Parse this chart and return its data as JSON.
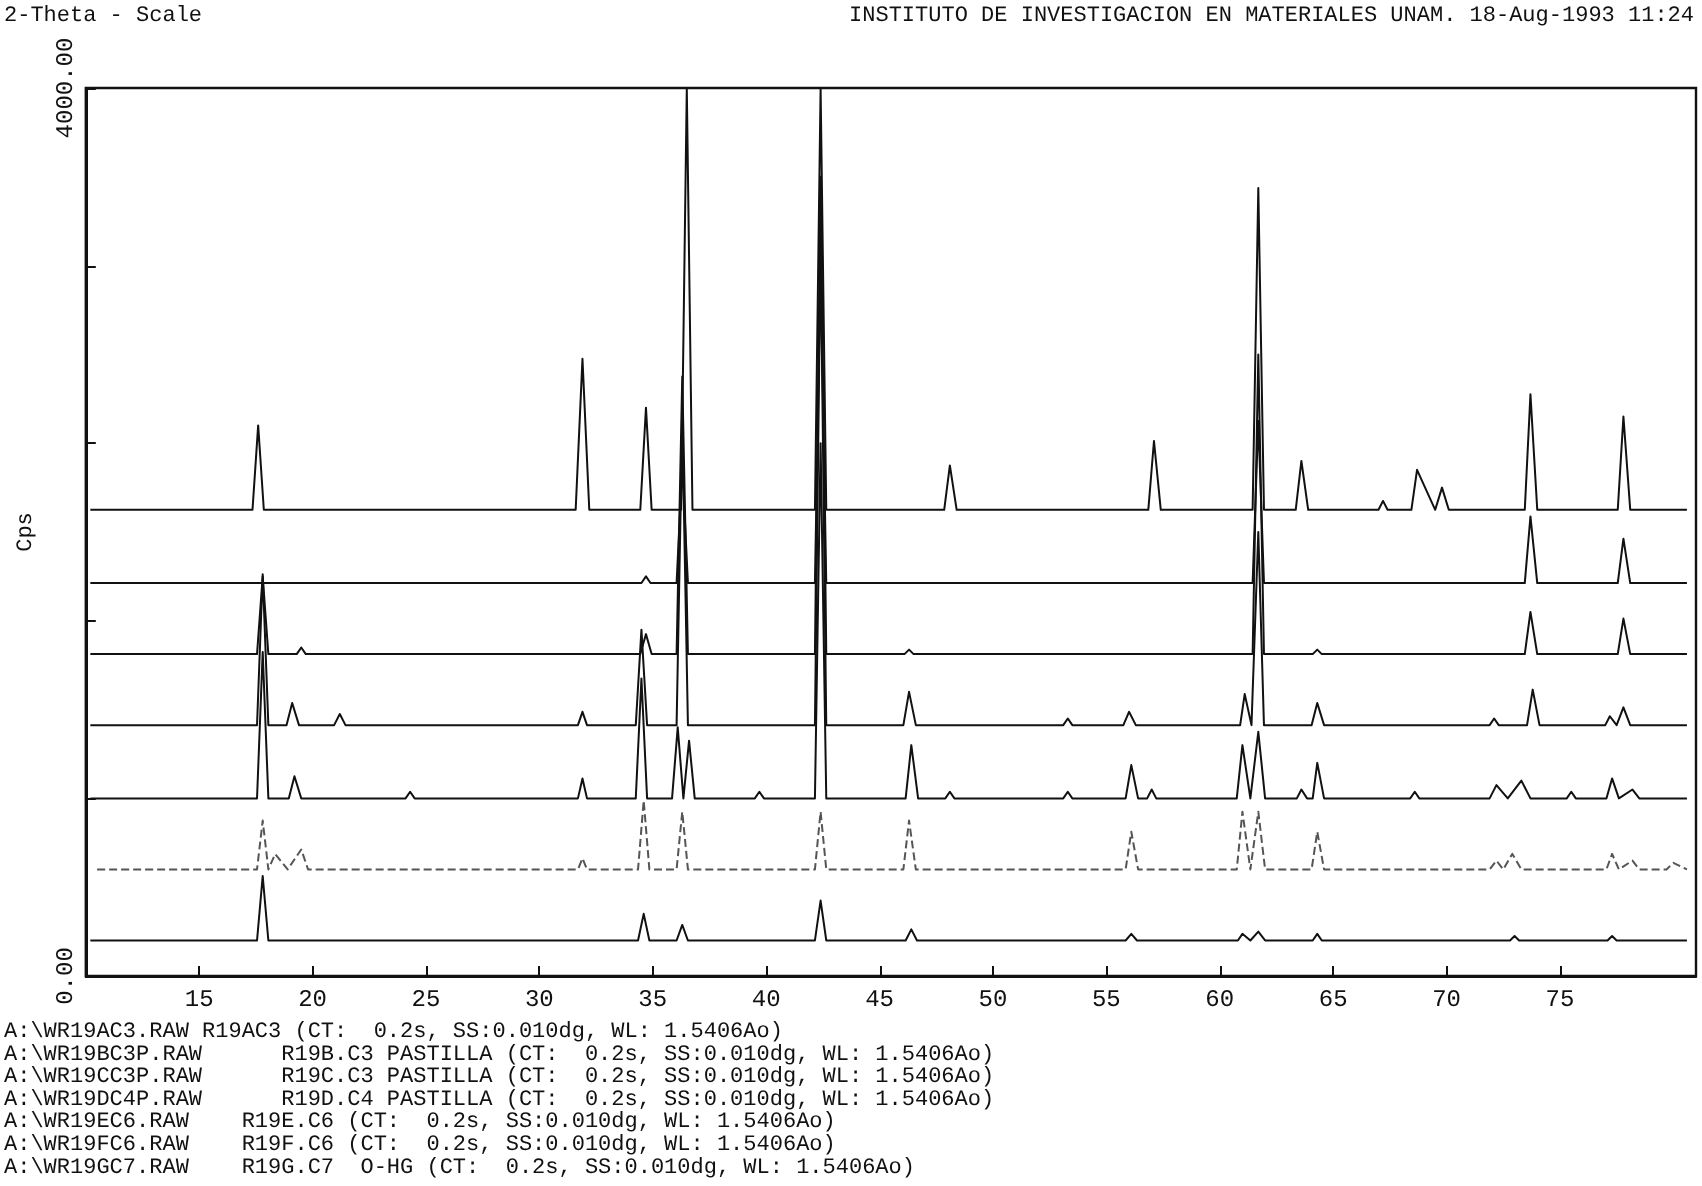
{
  "chart_data": {
    "type": "line",
    "title": "INSTITUTO DE INVESTIGACION EN MATERIALES UNAM. 18-Aug-1993 11:24",
    "xlabel": "2-Theta - Scale",
    "ylabel": "Cps",
    "xlim": [
      10,
      81
    ],
    "xticks": [
      15,
      20,
      25,
      30,
      35,
      40,
      45,
      50,
      55,
      60,
      65,
      70,
      75
    ],
    "ylim": [
      0,
      4000
    ],
    "yticks": [
      {
        "value": 0,
        "label": "0.00"
      },
      {
        "value": 800,
        "label": null
      },
      {
        "value": 1600,
        "label": null
      },
      {
        "value": 2400,
        "label": null
      },
      {
        "value": 3200,
        "label": null
      },
      {
        "value": 4000,
        "label": "4000.00"
      }
    ],
    "grid": false,
    "marker": "none",
    "series": [
      {
        "color": "#111111",
        "line_style": "solid",
        "x": [
          10.2,
          17.35,
          17.6,
          17.85,
          31.6,
          31.9,
          32.2,
          34.45,
          34.7,
          34.95,
          36.25,
          36.5,
          36.75,
          42.15,
          42.4,
          42.65,
          47.85,
          48.1,
          48.4,
          56.85,
          57.1,
          57.4,
          61.45,
          61.7,
          61.95,
          63.35,
          63.6,
          63.9,
          67.0,
          67.2,
          67.4,
          68.45,
          68.7,
          69.5,
          69.8,
          70.1,
          73.45,
          73.7,
          74.0,
          77.55,
          77.8,
          78.1,
          80.6
        ],
        "values": [
          2100,
          2100,
          2480,
          2100,
          2100,
          2780,
          2100,
          2100,
          2560,
          2100,
          2100,
          4000,
          2100,
          2100,
          4000,
          2100,
          2100,
          2300,
          2100,
          2100,
          2410,
          2100,
          2100,
          3550,
          2100,
          2100,
          2320,
          2100,
          2100,
          2140,
          2100,
          2100,
          2280,
          2100,
          2200,
          2100,
          2100,
          2620,
          2100,
          2100,
          2520,
          2100,
          2100
        ]
      },
      {
        "color": "#111111",
        "line_style": "solid",
        "x": [
          10.2,
          34.5,
          34.7,
          34.9,
          36.05,
          36.3,
          36.55,
          42.15,
          42.4,
          42.65,
          61.45,
          61.7,
          61.95,
          73.45,
          73.7,
          74.0,
          77.55,
          77.8,
          78.1,
          80.6
        ],
        "values": [
          1770,
          1770,
          1800,
          1770,
          1770,
          2300,
          1770,
          1770,
          3200,
          1770,
          1770,
          2500,
          1770,
          1770,
          2070,
          1770,
          1770,
          1970,
          1770,
          1770
        ]
      },
      {
        "color": "#111111",
        "line_style": "solid",
        "x": [
          10.2,
          17.55,
          17.8,
          18.05,
          19.3,
          19.5,
          19.7,
          34.45,
          34.7,
          34.95,
          36.05,
          36.3,
          36.55,
          42.15,
          42.4,
          42.65,
          46.1,
          46.3,
          46.5,
          61.45,
          61.7,
          61.95,
          64.1,
          64.3,
          64.5,
          73.45,
          73.7,
          74.0,
          77.55,
          77.8,
          78.1,
          80.6
        ],
        "values": [
          1450,
          1450,
          1800,
          1450,
          1450,
          1480,
          1450,
          1450,
          1540,
          1450,
          1450,
          2700,
          1450,
          1450,
          3600,
          1450,
          1450,
          1470,
          1450,
          1450,
          2800,
          1450,
          1450,
          1470,
          1450,
          1450,
          1640,
          1450,
          1450,
          1610,
          1450,
          1450
        ]
      },
      {
        "color": "#111111",
        "line_style": "solid",
        "x": [
          10.2,
          17.55,
          17.8,
          18.05,
          18.85,
          19.1,
          19.4,
          20.95,
          21.2,
          21.45,
          31.7,
          31.9,
          32.1,
          34.25,
          34.5,
          34.75,
          36.05,
          36.3,
          36.55,
          42.15,
          42.4,
          42.65,
          46.05,
          46.3,
          46.6,
          53.1,
          53.3,
          53.5,
          55.75,
          56.0,
          56.3,
          60.9,
          61.1,
          61.4,
          61.7,
          61.95,
          64.05,
          64.3,
          64.6,
          71.9,
          72.1,
          72.3,
          73.55,
          73.8,
          74.1,
          77.0,
          77.2,
          77.5,
          77.8,
          78.1,
          80.6
        ],
        "values": [
          1130,
          1130,
          1810,
          1130,
          1130,
          1230,
          1130,
          1130,
          1180,
          1130,
          1130,
          1190,
          1130,
          1130,
          1560,
          1130,
          1130,
          2500,
          1130,
          1130,
          3300,
          1130,
          1130,
          1280,
          1130,
          1130,
          1160,
          1130,
          1130,
          1190,
          1130,
          1130,
          1270,
          1130,
          2000,
          1130,
          1130,
          1230,
          1130,
          1130,
          1160,
          1130,
          1130,
          1290,
          1130,
          1130,
          1170,
          1130,
          1210,
          1130,
          1130
        ]
      },
      {
        "color": "#111111",
        "line_style": "solid",
        "x": [
          10.2,
          17.55,
          17.8,
          18.05,
          18.95,
          19.2,
          19.5,
          24.1,
          24.3,
          24.5,
          31.7,
          31.9,
          32.1,
          34.25,
          34.5,
          34.75,
          35.85,
          36.1,
          36.35,
          36.6,
          36.85,
          39.5,
          39.7,
          39.9,
          42.15,
          42.4,
          42.65,
          46.15,
          46.4,
          46.7,
          47.9,
          48.1,
          48.3,
          53.1,
          53.3,
          53.5,
          55.85,
          56.1,
          56.4,
          56.8,
          57.0,
          57.2,
          60.75,
          61.0,
          61.35,
          61.7,
          62.0,
          63.4,
          63.6,
          63.85,
          64.1,
          64.3,
          64.6,
          68.4,
          68.6,
          68.8,
          71.9,
          72.2,
          72.7,
          73.3,
          73.7,
          75.3,
          75.5,
          75.7,
          77.05,
          77.3,
          77.6,
          78.2,
          78.5,
          80.6
        ],
        "values": [
          800,
          800,
          1460,
          800,
          800,
          900,
          800,
          800,
          830,
          800,
          800,
          890,
          800,
          800,
          1340,
          800,
          800,
          1120,
          800,
          1060,
          800,
          800,
          830,
          800,
          800,
          2400,
          800,
          800,
          1040,
          800,
          800,
          830,
          800,
          800,
          830,
          800,
          800,
          950,
          800,
          800,
          840,
          800,
          800,
          1040,
          800,
          1100,
          800,
          800,
          840,
          800,
          800,
          960,
          800,
          800,
          830,
          800,
          800,
          860,
          800,
          880,
          800,
          800,
          830,
          800,
          800,
          890,
          800,
          840,
          800,
          800
        ]
      },
      {
        "color": "#555555",
        "line_style": "dashed",
        "x": [
          10.5,
          17.55,
          17.8,
          18.05,
          18.35,
          18.9,
          19.5,
          19.8,
          31.7,
          31.9,
          32.1,
          34.35,
          34.6,
          34.85,
          36.05,
          36.3,
          36.55,
          42.15,
          42.4,
          42.65,
          46.05,
          46.3,
          46.6,
          55.85,
          56.1,
          56.4,
          60.75,
          61.0,
          61.35,
          61.7,
          62.0,
          64.05,
          64.3,
          64.6,
          71.9,
          72.2,
          72.5,
          72.9,
          73.3,
          77.05,
          77.3,
          77.6,
          78.2,
          78.5,
          79.7,
          80.0,
          80.6
        ],
        "values": [
          480,
          480,
          700,
          480,
          550,
          480,
          570,
          480,
          480,
          530,
          480,
          480,
          790,
          480,
          480,
          740,
          480,
          480,
          740,
          480,
          480,
          700,
          480,
          480,
          650,
          480,
          480,
          740,
          480,
          740,
          480,
          480,
          650,
          480,
          480,
          520,
          480,
          550,
          480,
          480,
          550,
          480,
          520,
          480,
          480,
          510,
          480
        ]
      },
      {
        "color": "#111111",
        "line_style": "solid",
        "x": [
          10.2,
          17.55,
          17.8,
          18.05,
          34.35,
          34.6,
          34.85,
          36.05,
          36.3,
          36.55,
          42.15,
          42.4,
          42.65,
          46.15,
          46.4,
          46.65,
          55.85,
          56.1,
          56.35,
          60.8,
          61.0,
          61.35,
          61.7,
          62.0,
          64.1,
          64.3,
          64.5,
          72.8,
          73.0,
          73.2,
          77.1,
          77.3,
          77.5,
          80.6
        ],
        "values": [
          160,
          160,
          450,
          160,
          160,
          280,
          160,
          160,
          230,
          160,
          160,
          340,
          160,
          160,
          210,
          160,
          160,
          190,
          160,
          160,
          190,
          160,
          200,
          160,
          160,
          190,
          160,
          160,
          180,
          160,
          160,
          180,
          160,
          160
        ]
      }
    ],
    "annotations": [
      "A:\\WR19AC3.RAW R19AC3 (CT:  0.2s, SS:0.010dg, WL: 1.5406Ao)",
      "A:\\WR19BC3P.RAW      R19B.C3 PASTILLA (CT:  0.2s, SS:0.010dg, WL: 1.5406Ao)",
      "A:\\WR19CC3P.RAW      R19C.C3 PASTILLA (CT:  0.2s, SS:0.010dg, WL: 1.5406Ao)",
      "A:\\WR19DC4P.RAW      R19D.C4 PASTILLA (CT:  0.2s, SS:0.010dg, WL: 1.5406Ao)",
      "A:\\WR19EC6.RAW    R19E.C6 (CT:  0.2s, SS:0.010dg, WL: 1.5406Ao)",
      "A:\\WR19FC6.RAW    R19F.C6 (CT:  0.2s, SS:0.010dg, WL: 1.5406Ao)",
      "A:\\WR19GC7.RAW    R19G.C7  O-HG (CT:  0.2s, SS:0.010dg, WL: 1.5406Ao)"
    ]
  }
}
